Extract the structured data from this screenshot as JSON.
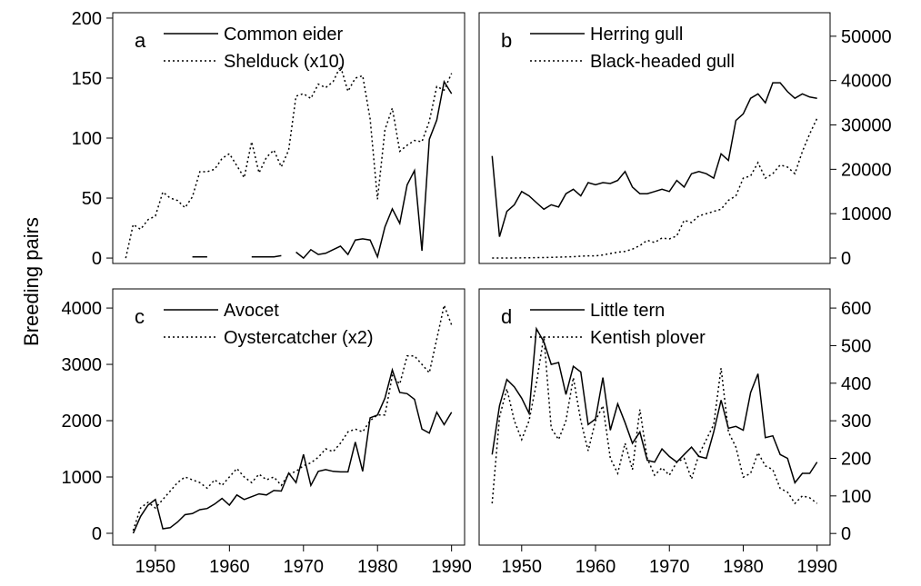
{
  "y_label": "Breeding pairs",
  "chart_data": [
    {
      "type": "line",
      "label": "a",
      "axis_side": "left",
      "legend": "top-left",
      "x": [
        1946,
        1947,
        1948,
        1949,
        1950,
        1951,
        1952,
        1953,
        1954,
        1955,
        1956,
        1957,
        1958,
        1959,
        1960,
        1961,
        1962,
        1963,
        1964,
        1965,
        1966,
        1967,
        1968,
        1969,
        1970,
        1971,
        1972,
        1973,
        1974,
        1975,
        1976,
        1977,
        1978,
        1979,
        1980,
        1981,
        1982,
        1983,
        1984,
        1985,
        1986,
        1987,
        1988,
        1989,
        1990
      ],
      "xlim": [
        1944.24,
        1991.76
      ],
      "ylim": [
        -4.5,
        204.5
      ],
      "yticks": [
        0,
        50,
        100,
        150,
        200
      ],
      "series": [
        {
          "name": "Common eider",
          "color": "#000000",
          "style": "solid",
          "values": [
            null,
            null,
            null,
            null,
            null,
            null,
            null,
            null,
            null,
            1,
            1,
            1,
            null,
            null,
            null,
            null,
            null,
            1,
            1,
            1,
            1,
            2,
            null,
            5,
            0,
            7,
            3,
            4,
            7,
            10,
            3,
            15,
            16,
            15,
            1,
            26,
            41,
            29,
            61,
            73,
            6,
            99,
            115,
            147,
            137
          ]
        },
        {
          "name": "Shelduck (x10)",
          "color": "#000000",
          "style": "dotted",
          "values": [
            0,
            28,
            24,
            32,
            35,
            55,
            50,
            48,
            42,
            51,
            72,
            72,
            74,
            83,
            87,
            77,
            67,
            97,
            71,
            84,
            90,
            76,
            90,
            135,
            137,
            133,
            145,
            142,
            147,
            160,
            139,
            150,
            152,
            116,
            49,
            107,
            125,
            89,
            94,
            98,
            97,
            114,
            143,
            140,
            154
          ]
        }
      ]
    },
    {
      "type": "line",
      "label": "b",
      "axis_side": "right",
      "legend": "top-left",
      "x": [
        1946,
        1947,
        1948,
        1949,
        1950,
        1951,
        1952,
        1953,
        1954,
        1955,
        1956,
        1957,
        1958,
        1959,
        1960,
        1961,
        1962,
        1963,
        1964,
        1965,
        1966,
        1967,
        1968,
        1969,
        1970,
        1971,
        1972,
        1973,
        1974,
        1975,
        1976,
        1977,
        1978,
        1979,
        1980,
        1981,
        1982,
        1983,
        1984,
        1985,
        1986,
        1987,
        1988,
        1989,
        1990
      ],
      "xlim": [
        1944.24,
        1991.76
      ],
      "ylim": [
        -1230,
        55300
      ],
      "yticks": [
        0,
        10000,
        20000,
        30000,
        40000,
        50000
      ],
      "series": [
        {
          "name": "Herring gull",
          "color": "#000000",
          "style": "solid",
          "values": [
            23000,
            4800,
            10500,
            12000,
            15000,
            14000,
            12500,
            11000,
            12000,
            11500,
            14500,
            15500,
            14000,
            17000,
            16500,
            17000,
            16800,
            17500,
            19500,
            16000,
            14500,
            14500,
            15000,
            15500,
            15000,
            17500,
            16000,
            19000,
            19500,
            19000,
            18000,
            23500,
            22000,
            31000,
            32500,
            36000,
            37000,
            35000,
            39500,
            39500,
            37500,
            36000,
            37000,
            36300,
            36000
          ]
        },
        {
          "name": "Black-headed gull",
          "color": "#000000",
          "style": "dotted",
          "values": [
            0,
            0,
            0,
            0,
            50,
            50,
            100,
            100,
            150,
            200,
            250,
            300,
            400,
            500,
            500,
            700,
            1000,
            1300,
            1500,
            2000,
            2800,
            4000,
            3500,
            4500,
            4300,
            5000,
            8500,
            8000,
            9500,
            10000,
            10500,
            11000,
            13000,
            14000,
            18000,
            18500,
            21500,
            18000,
            19000,
            21000,
            20500,
            19000,
            24000,
            28000,
            31500
          ]
        }
      ]
    },
    {
      "type": "line",
      "label": "c",
      "axis_side": "left",
      "legend": "top-left",
      "x": [
        1946,
        1947,
        1948,
        1949,
        1950,
        1951,
        1952,
        1953,
        1954,
        1955,
        1956,
        1957,
        1958,
        1959,
        1960,
        1961,
        1962,
        1963,
        1964,
        1965,
        1966,
        1967,
        1968,
        1969,
        1970,
        1971,
        1972,
        1973,
        1974,
        1975,
        1976,
        1977,
        1978,
        1979,
        1980,
        1981,
        1982,
        1983,
        1984,
        1985,
        1986,
        1987,
        1988,
        1989,
        1990
      ],
      "xlim": [
        1944.24,
        1991.76
      ],
      "xticks": [
        1950,
        1960,
        1970,
        1980,
        1990
      ],
      "ylim": [
        -210,
        4340
      ],
      "yticks": [
        0,
        1000,
        2000,
        3000,
        4000
      ],
      "series": [
        {
          "name": "Avocet",
          "color": "#000000",
          "style": "solid",
          "values": [
            null,
            0,
            300,
            500,
            600,
            80,
            100,
            200,
            330,
            350,
            420,
            440,
            520,
            620,
            500,
            680,
            600,
            650,
            700,
            680,
            760,
            750,
            1070,
            900,
            1400,
            850,
            1100,
            1130,
            1100,
            1090,
            1090,
            1620,
            1100,
            2050,
            2100,
            2400,
            2900,
            2500,
            2480,
            2380,
            1850,
            1780,
            2150,
            1930,
            2150
          ]
        },
        {
          "name": "Oystercatcher (x2)",
          "color": "#000000",
          "style": "dotted",
          "values": [
            null,
            50,
            450,
            550,
            450,
            600,
            750,
            900,
            1000,
            950,
            900,
            800,
            950,
            850,
            1000,
            1150,
            1000,
            900,
            1050,
            950,
            1000,
            850,
            1050,
            1100,
            1200,
            1250,
            1350,
            1500,
            1450,
            1600,
            1800,
            1850,
            1800,
            2000,
            2100,
            2100,
            2800,
            2650,
            3150,
            3150,
            3000,
            2850,
            3450,
            4050,
            3700
          ]
        }
      ]
    },
    {
      "type": "line",
      "label": "d",
      "axis_side": "right",
      "legend": "top-left",
      "x": [
        1946,
        1947,
        1948,
        1949,
        1950,
        1951,
        1952,
        1953,
        1954,
        1955,
        1956,
        1957,
        1958,
        1959,
        1960,
        1961,
        1962,
        1963,
        1964,
        1965,
        1966,
        1967,
        1968,
        1969,
        1970,
        1971,
        1972,
        1973,
        1974,
        1975,
        1976,
        1977,
        1978,
        1979,
        1980,
        1981,
        1982,
        1983,
        1984,
        1985,
        1986,
        1987,
        1988,
        1989,
        1990
      ],
      "xlim": [
        1944.24,
        1991.76
      ],
      "xticks": [
        1950,
        1960,
        1970,
        1980,
        1990
      ],
      "ylim": [
        -31,
        651
      ],
      "yticks": [
        0,
        100,
        200,
        300,
        400,
        500,
        600
      ],
      "series": [
        {
          "name": "Little tern",
          "color": "#000000",
          "style": "solid",
          "values": [
            210,
            340,
            410,
            390,
            360,
            320,
            545,
            510,
            450,
            455,
            370,
            445,
            430,
            290,
            305,
            415,
            275,
            345,
            295,
            240,
            270,
            195,
            190,
            225,
            205,
            190,
            210,
            230,
            205,
            200,
            270,
            355,
            280,
            285,
            275,
            375,
            425,
            255,
            260,
            210,
            200,
            135,
            160,
            160,
            190
          ]
        },
        {
          "name": "Kentish plover",
          "color": "#000000",
          "style": "dotted",
          "values": [
            80,
            310,
            385,
            300,
            250,
            300,
            400,
            525,
            280,
            250,
            300,
            415,
            300,
            220,
            300,
            340,
            200,
            160,
            240,
            170,
            330,
            200,
            155,
            175,
            155,
            190,
            200,
            145,
            210,
            250,
            290,
            440,
            270,
            230,
            150,
            160,
            215,
            180,
            170,
            120,
            110,
            80,
            100,
            95,
            80
          ]
        }
      ]
    }
  ]
}
